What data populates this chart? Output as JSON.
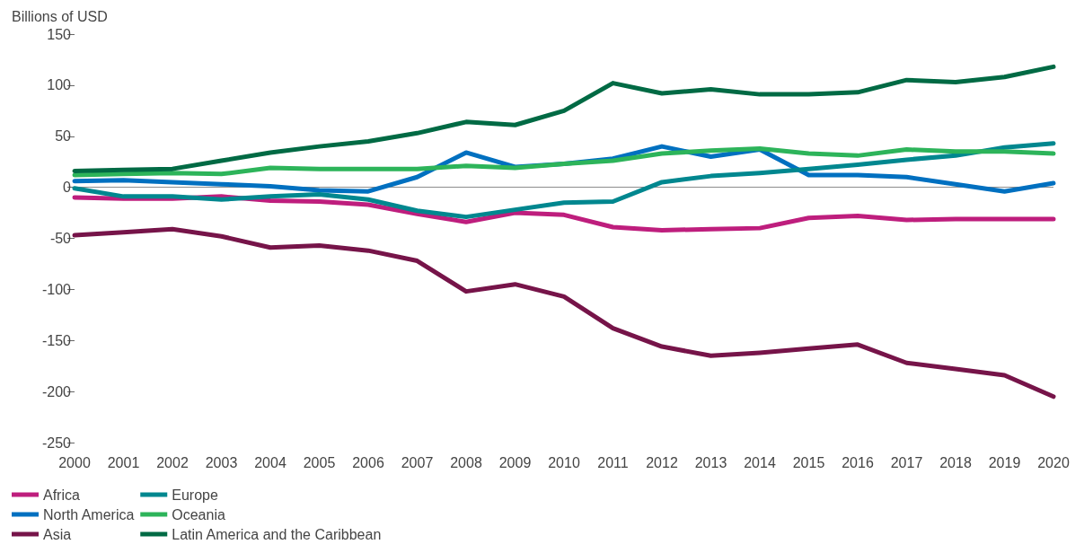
{
  "chart_data": {
    "type": "line",
    "ylabel": "Billions of USD",
    "categories": [
      "2000",
      "2001",
      "2002",
      "2003",
      "2004",
      "2005",
      "2006",
      "2007",
      "2008",
      "2009",
      "2010",
      "2011",
      "2012",
      "2013",
      "2014",
      "2015",
      "2016",
      "2017",
      "2018",
      "2019",
      "2020"
    ],
    "ylim": [
      -250,
      150
    ],
    "yticks": [
      -250,
      -200,
      -150,
      -100,
      -50,
      0,
      50,
      100,
      150
    ],
    "grid": false,
    "legend": "bottom left",
    "marker": "none",
    "line_style": "solid",
    "ref_lines": [
      {
        "axis": "y",
        "value": 0,
        "color": "#8c8c8c"
      }
    ],
    "series": [
      {
        "name": "Africa",
        "color": "#be1e7d",
        "values": [
          -10,
          -11,
          -11,
          -9,
          -13,
          -14,
          -17,
          -26,
          -34,
          -25,
          -27,
          -39,
          -42,
          -41,
          -40,
          -30,
          -28,
          -32,
          -31,
          -31,
          -31
        ]
      },
      {
        "name": "North America",
        "color": "#0070c0",
        "values": [
          6,
          7,
          5,
          3,
          1,
          -3,
          -4,
          10,
          34,
          20,
          23,
          28,
          40,
          30,
          37,
          12,
          12,
          10,
          3,
          -4,
          4
        ]
      },
      {
        "name": "Asia",
        "color": "#761449",
        "values": [
          -47,
          -44,
          -41,
          -48,
          -59,
          -57,
          -62,
          -72,
          -102,
          -95,
          -107,
          -138,
          -156,
          -165,
          -162,
          -158,
          -154,
          -172,
          -178,
          -184,
          -205
        ]
      },
      {
        "name": "Europe",
        "color": "#00878f",
        "values": [
          -1,
          -9,
          -9,
          -12,
          -9,
          -7,
          -12,
          -23,
          -29,
          -22,
          -15,
          -14,
          5,
          11,
          14,
          18,
          22,
          27,
          31,
          39,
          43
        ]
      },
      {
        "name": "Oceania",
        "color": "#2db45a",
        "values": [
          12,
          13,
          14,
          13,
          19,
          18,
          18,
          18,
          21,
          19,
          23,
          26,
          33,
          36,
          38,
          33,
          31,
          37,
          35,
          35,
          33
        ]
      },
      {
        "name": "Latin America and the Caribbean",
        "color": "#006a44",
        "values": [
          16,
          17,
          18,
          26,
          34,
          40,
          45,
          53,
          64,
          61,
          75,
          102,
          92,
          96,
          91,
          91,
          93,
          105,
          103,
          108,
          118
        ]
      }
    ]
  }
}
